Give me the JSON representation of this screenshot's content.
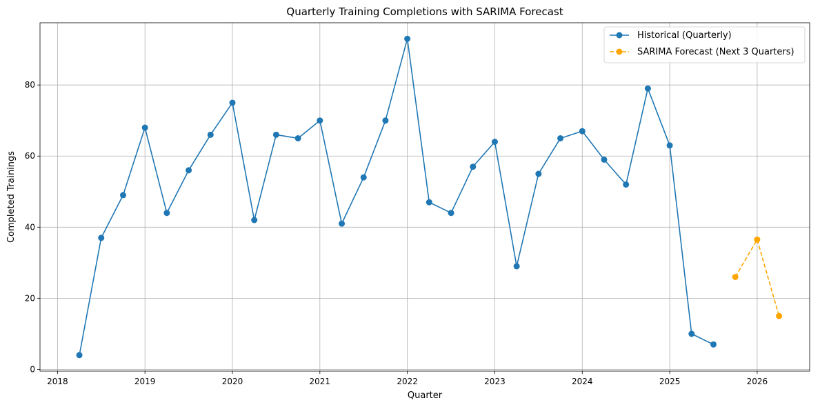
{
  "chart_data": {
    "type": "line",
    "title": "Quarterly Training Completions with SARIMA Forecast",
    "xlabel": "Quarter",
    "ylabel": "Completed Trainings",
    "xlim": [
      2017.8,
      2026.6
    ],
    "ylim": [
      -0.5,
      97.5
    ],
    "x_ticks": [
      2018,
      2019,
      2020,
      2021,
      2022,
      2023,
      2024,
      2025,
      2026
    ],
    "x_tick_labels": [
      "2018",
      "2019",
      "2020",
      "2021",
      "2022",
      "2023",
      "2024",
      "2025",
      "2026"
    ],
    "y_ticks": [
      0,
      20,
      40,
      60,
      80
    ],
    "y_tick_labels": [
      "0",
      "20",
      "40",
      "60",
      "80"
    ],
    "grid": true,
    "legend_position": "top-right",
    "series": [
      {
        "name": "Historical (Quarterly)",
        "color": "#1f77b4",
        "line_style": "solid",
        "marker": "circle",
        "x": [
          2018.25,
          2018.5,
          2018.75,
          2019.0,
          2019.25,
          2019.5,
          2019.75,
          2020.0,
          2020.25,
          2020.5,
          2020.75,
          2021.0,
          2021.25,
          2021.5,
          2021.75,
          2022.0,
          2022.25,
          2022.5,
          2022.75,
          2023.0,
          2023.25,
          2023.5,
          2023.75,
          2024.0,
          2024.25,
          2024.5,
          2024.75,
          2025.0,
          2025.25,
          2025.5
        ],
        "values": [
          4,
          37,
          49,
          68,
          44,
          56,
          66,
          75,
          42,
          66,
          65,
          70,
          41,
          54,
          70,
          93,
          47,
          44,
          57,
          64,
          29,
          55,
          65,
          67,
          59,
          52,
          79,
          63,
          10,
          7
        ]
      },
      {
        "name": "SARIMA Forecast (Next 3 Quarters)",
        "color": "#ffa500",
        "line_style": "dashed",
        "marker": "circle",
        "x": [
          2025.75,
          2026.0,
          2026.25
        ],
        "values": [
          26,
          36.5,
          15
        ]
      }
    ]
  }
}
